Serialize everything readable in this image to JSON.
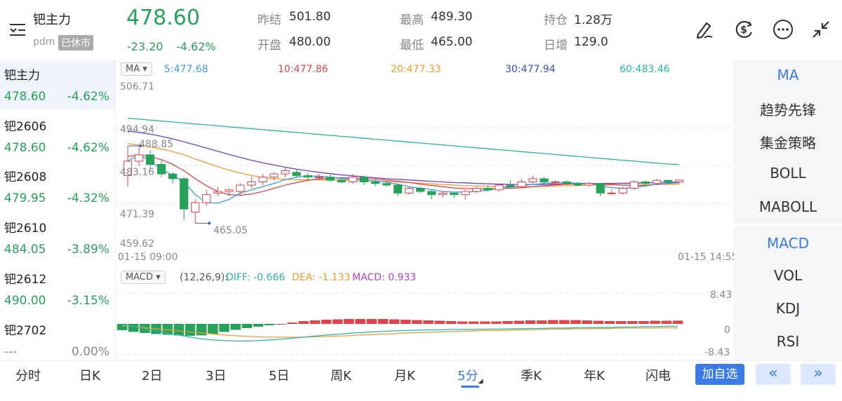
{
  "header": {
    "title": "钯主力",
    "code": "pdm",
    "status": "已休市",
    "price": "478.60",
    "change": "-23.20",
    "change_pct": "-4.62%",
    "stats": [
      {
        "label": "昨结",
        "value": "501.80",
        "color": "#333"
      },
      {
        "label": "开盘",
        "value": "480.00",
        "color": "#27a25a"
      },
      {
        "label": "最高",
        "value": "489.30",
        "color": "#27a25a"
      },
      {
        "label": "最低",
        "value": "465.00",
        "color": "#27a25a"
      },
      {
        "label": "持仓",
        "value": "1.28万",
        "color": "#333"
      },
      {
        "label": "日增",
        "value": "129.0",
        "color": "#333"
      }
    ]
  },
  "toolbar_icons": [
    "draw-icon",
    "currency-icon",
    "more-icon",
    "collapse-icon"
  ],
  "contracts": [
    {
      "name": "钯主力",
      "price": "478.60",
      "pct": "-4.62%"
    },
    {
      "name": "钯2606",
      "price": "478.60",
      "pct": "-4.62%"
    },
    {
      "name": "钯2608",
      "price": "479.95",
      "pct": "-4.32%"
    },
    {
      "name": "钯2610",
      "price": "484.05",
      "pct": "-3.89%"
    },
    {
      "name": "钯2612",
      "price": "490.00",
      "pct": "-3.15%"
    },
    {
      "name": "钯2702",
      "price": "---",
      "pct": "0.00%"
    }
  ],
  "ma_bar": {
    "selector": "MA",
    "ma5": "5:477.68",
    "ma10": "10:477.86",
    "ma20": "20:477.33",
    "ma30": "30:477.94",
    "ma60": "60:483.46"
  },
  "price_axis": [
    "506.71",
    "494.94",
    "483.16",
    "471.39",
    "459.62"
  ],
  "price_labels": {
    "high": "488.85",
    "low": "465.05"
  },
  "time_axis": {
    "start": "01-15 09:00",
    "end": "01-15 14:55"
  },
  "macd_bar": {
    "selector": "MACD",
    "params": "(12,26,9):",
    "diff": "DIFF: -0.666",
    "dea": "DEA: -1.133",
    "macd": "MACD: 0.933"
  },
  "macd_axis": [
    "8.43",
    "0",
    "-8.43"
  ],
  "indicators_top": [
    "MA",
    "趋势先锋",
    "集金策略",
    "BOLL",
    "MABOLL"
  ],
  "indicators_bottom": [
    "MACD",
    "VOL",
    "KDJ",
    "RSI"
  ],
  "tabs": [
    "分时",
    "日K",
    "2日",
    "3日",
    "5日",
    "周K",
    "月K",
    "5分",
    "季K",
    "年K",
    "闪电"
  ],
  "active_tab": "5分",
  "add_button": "加自选",
  "nav": {
    "prev": "«",
    "next": "»"
  },
  "colors": {
    "up": "#e0434a",
    "down": "#27a25a",
    "accent": "#3b7be8",
    "ma5": "#3b9be0",
    "ma10": "#e0434a",
    "ma20": "#f39a2b",
    "ma30": "#7a3fc8",
    "ma60": "#25b5a8"
  },
  "chart_data": {
    "type": "candlestick",
    "y_range": [
      459.62,
      506.71
    ],
    "candles": [
      {
        "o": 480.0,
        "h": 489.3,
        "l": 476.5,
        "c": 484.5
      },
      {
        "o": 484.5,
        "h": 488.85,
        "l": 483.0,
        "c": 486.5
      },
      {
        "o": 486.5,
        "h": 488.0,
        "l": 482.0,
        "c": 483.5
      },
      {
        "o": 483.5,
        "h": 485.0,
        "l": 479.5,
        "c": 480.5
      },
      {
        "o": 480.5,
        "h": 481.0,
        "l": 477.5,
        "c": 479.0
      },
      {
        "o": 479.0,
        "h": 479.5,
        "l": 466.0,
        "c": 469.5
      },
      {
        "o": 468.5,
        "h": 472.5,
        "l": 465.05,
        "c": 471.5
      },
      {
        "o": 471.5,
        "h": 475.5,
        "l": 470.5,
        "c": 474.0
      },
      {
        "o": 474.5,
        "h": 476.5,
        "l": 473.5,
        "c": 475.0
      },
      {
        "o": 475.0,
        "h": 476.0,
        "l": 473.5,
        "c": 475.5
      },
      {
        "o": 475.0,
        "h": 477.5,
        "l": 474.0,
        "c": 477.0
      },
      {
        "o": 477.0,
        "h": 479.5,
        "l": 476.0,
        "c": 478.0
      },
      {
        "o": 478.0,
        "h": 480.5,
        "l": 477.0,
        "c": 479.5
      },
      {
        "o": 479.5,
        "h": 481.0,
        "l": 478.5,
        "c": 480.5
      },
      {
        "o": 480.5,
        "h": 482.5,
        "l": 479.5,
        "c": 481.5
      },
      {
        "o": 481.0,
        "h": 482.0,
        "l": 479.5,
        "c": 480.0
      },
      {
        "o": 480.0,
        "h": 481.0,
        "l": 478.5,
        "c": 479.5
      },
      {
        "o": 479.5,
        "h": 480.5,
        "l": 478.5,
        "c": 479.5
      },
      {
        "o": 479.5,
        "h": 480.5,
        "l": 478.0,
        "c": 478.5
      },
      {
        "o": 478.5,
        "h": 479.5,
        "l": 477.5,
        "c": 478.0
      },
      {
        "o": 478.0,
        "h": 480.5,
        "l": 477.5,
        "c": 479.5
      },
      {
        "o": 479.5,
        "h": 480.0,
        "l": 477.0,
        "c": 478.0
      },
      {
        "o": 478.0,
        "h": 479.0,
        "l": 476.5,
        "c": 477.5
      },
      {
        "o": 477.5,
        "h": 478.0,
        "l": 476.5,
        "c": 477.0
      },
      {
        "o": 477.0,
        "h": 477.5,
        "l": 473.5,
        "c": 474.5
      },
      {
        "o": 474.5,
        "h": 476.5,
        "l": 474.0,
        "c": 476.0
      },
      {
        "o": 476.0,
        "h": 476.5,
        "l": 474.5,
        "c": 475.0
      },
      {
        "o": 475.0,
        "h": 475.5,
        "l": 472.5,
        "c": 474.0
      },
      {
        "o": 474.0,
        "h": 475.0,
        "l": 473.0,
        "c": 474.5
      },
      {
        "o": 474.5,
        "h": 475.0,
        "l": 473.0,
        "c": 474.0
      },
      {
        "o": 474.0,
        "h": 475.5,
        "l": 472.5,
        "c": 475.0
      },
      {
        "o": 475.0,
        "h": 476.5,
        "l": 474.5,
        "c": 476.0
      },
      {
        "o": 476.0,
        "h": 477.0,
        "l": 475.0,
        "c": 475.5
      },
      {
        "o": 475.5,
        "h": 477.5,
        "l": 475.0,
        "c": 477.0
      },
      {
        "o": 477.0,
        "h": 478.5,
        "l": 476.0,
        "c": 476.5
      },
      {
        "o": 476.5,
        "h": 479.0,
        "l": 476.0,
        "c": 478.0
      },
      {
        "o": 478.0,
        "h": 480.0,
        "l": 477.5,
        "c": 479.0
      },
      {
        "o": 479.0,
        "h": 479.5,
        "l": 477.5,
        "c": 478.0
      },
      {
        "o": 478.0,
        "h": 478.5,
        "l": 477.0,
        "c": 478.0
      },
      {
        "o": 478.0,
        "h": 478.5,
        "l": 477.0,
        "c": 477.5
      },
      {
        "o": 477.5,
        "h": 478.0,
        "l": 476.5,
        "c": 477.0
      },
      {
        "o": 477.0,
        "h": 478.0,
        "l": 476.5,
        "c": 477.5
      },
      {
        "o": 477.5,
        "h": 477.5,
        "l": 473.5,
        "c": 474.5
      },
      {
        "o": 474.5,
        "h": 475.5,
        "l": 474.0,
        "c": 474.5
      },
      {
        "o": 474.5,
        "h": 476.5,
        "l": 474.0,
        "c": 476.0
      },
      {
        "o": 476.0,
        "h": 478.5,
        "l": 475.5,
        "c": 478.0
      },
      {
        "o": 478.0,
        "h": 478.5,
        "l": 476.5,
        "c": 477.5
      },
      {
        "o": 477.5,
        "h": 479.0,
        "l": 477.0,
        "c": 478.5
      },
      {
        "o": 478.5,
        "h": 478.6,
        "l": 477.5,
        "c": 478.0
      },
      {
        "o": 478.0,
        "h": 478.6,
        "l": 477.5,
        "c": 478.6
      }
    ],
    "ma": {
      "ma5": [
        484.5,
        486.5,
        484.5,
        482.0,
        480.0,
        478.0,
        474.0,
        471.5,
        471.3,
        472.5,
        474.5,
        475.5,
        476.5,
        477.5,
        478.7,
        479.5,
        479.8,
        479.8,
        479.5,
        479.0,
        478.8,
        478.6,
        478.3,
        478.0,
        477.3,
        476.5,
        476.0,
        475.6,
        475.0,
        474.8,
        474.8,
        475.0,
        475.4,
        475.9,
        476.3,
        476.8,
        477.2,
        477.5,
        477.7,
        477.7,
        477.6,
        477.5,
        476.8,
        476.2,
        476.0,
        476.3,
        476.7,
        477.3,
        477.6,
        477.7
      ],
      "ma10": [
        486.0,
        486.5,
        486.0,
        485.0,
        483.5,
        481.5,
        479.0,
        476.8,
        475.0,
        474.0,
        473.8,
        474.2,
        475.0,
        476.0,
        477.0,
        477.8,
        478.5,
        478.9,
        479.2,
        479.3,
        479.2,
        479.1,
        478.9,
        478.6,
        478.2,
        477.8,
        477.3,
        476.9,
        476.5,
        476.1,
        475.9,
        475.8,
        475.8,
        475.9,
        476.0,
        476.2,
        476.5,
        476.8,
        477.1,
        477.3,
        477.4,
        477.5,
        477.4,
        477.2,
        477.0,
        476.9,
        476.9,
        477.2,
        477.5,
        477.9
      ],
      "ma20": [
        490.0,
        489.5,
        489.0,
        488.3,
        487.5,
        486.5,
        485.2,
        484.0,
        482.8,
        481.7,
        480.8,
        480.0,
        479.4,
        479.0,
        478.8,
        478.7,
        478.7,
        478.7,
        478.7,
        478.6,
        478.5,
        478.4,
        478.3,
        478.2,
        478.0,
        477.8,
        477.6,
        477.4,
        477.2,
        477.0,
        476.8,
        476.7,
        476.6,
        476.5,
        476.5,
        476.5,
        476.5,
        476.6,
        476.7,
        476.8,
        476.9,
        477.0,
        477.0,
        477.0,
        477.0,
        477.0,
        477.1,
        477.2,
        477.3,
        477.3
      ],
      "ma30": [
        494.0,
        493.5,
        493.0,
        492.3,
        491.5,
        490.6,
        489.6,
        488.6,
        487.6,
        486.6,
        485.7,
        484.8,
        484.0,
        483.3,
        482.6,
        482.0,
        481.5,
        481.0,
        480.6,
        480.2,
        479.9,
        479.6,
        479.3,
        479.0,
        478.8,
        478.6,
        478.4,
        478.2,
        478.0,
        477.8,
        477.7,
        477.5,
        477.4,
        477.3,
        477.2,
        477.2,
        477.2,
        477.2,
        477.3,
        477.3,
        477.4,
        477.4,
        477.5,
        477.5,
        477.6,
        477.6,
        477.7,
        477.8,
        477.9,
        477.9
      ],
      "ma60": [
        498.0,
        497.7,
        497.4,
        497.1,
        496.8,
        496.5,
        496.2,
        495.9,
        495.6,
        495.3,
        495.0,
        494.7,
        494.4,
        494.1,
        493.8,
        493.5,
        493.2,
        492.9,
        492.6,
        492.3,
        492.0,
        491.7,
        491.4,
        491.1,
        490.8,
        490.5,
        490.2,
        489.9,
        489.6,
        489.3,
        489.0,
        488.7,
        488.4,
        488.1,
        487.8,
        487.5,
        487.2,
        486.9,
        486.6,
        486.3,
        486.0,
        485.7,
        485.4,
        485.1,
        484.8,
        484.5,
        484.2,
        483.9,
        483.6,
        483.46
      ]
    },
    "macd": {
      "hist": [
        -1.8,
        -2.3,
        -2.6,
        -2.9,
        -3.1,
        -3.3,
        -3.4,
        -3.3,
        -2.9,
        -2.3,
        -1.7,
        -1.2,
        -0.8,
        -0.4,
        0.0,
        0.4,
        0.8,
        1.0,
        1.2,
        1.3,
        1.4,
        1.4,
        1.4,
        1.4,
        1.3,
        1.2,
        1.1,
        1.0,
        0.9,
        0.8,
        0.7,
        0.7,
        0.7,
        0.7,
        0.8,
        0.9,
        1.0,
        1.0,
        1.1,
        1.1,
        1.1,
        1.0,
        0.9,
        0.8,
        0.8,
        0.8,
        0.8,
        0.9,
        0.9,
        0.93
      ],
      "diff": [
        -0.2,
        -0.8,
        -1.4,
        -2.0,
        -2.6,
        -3.2,
        -3.8,
        -4.3,
        -4.6,
        -4.8,
        -4.9,
        -4.9,
        -4.8,
        -4.6,
        -4.4,
        -4.1,
        -3.8,
        -3.5,
        -3.2,
        -3.0,
        -2.7,
        -2.5,
        -2.3,
        -2.1,
        -2.0,
        -1.9,
        -1.8,
        -1.7,
        -1.7,
        -1.6,
        -1.6,
        -1.6,
        -1.5,
        -1.5,
        -1.4,
        -1.4,
        -1.3,
        -1.3,
        -1.2,
        -1.2,
        -1.1,
        -1.1,
        -1.0,
        -1.0,
        -0.9,
        -0.9,
        -0.8,
        -0.8,
        -0.7,
        -0.666
      ],
      "dea": [
        -0.5,
        -0.8,
        -1.1,
        -1.4,
        -1.7,
        -2.0,
        -2.3,
        -2.6,
        -2.9,
        -3.2,
        -3.4,
        -3.6,
        -3.7,
        -3.8,
        -3.8,
        -3.8,
        -3.8,
        -3.7,
        -3.6,
        -3.5,
        -3.4,
        -3.2,
        -3.1,
        -2.9,
        -2.8,
        -2.6,
        -2.5,
        -2.4,
        -2.3,
        -2.2,
        -2.1,
        -2.0,
        -1.9,
        -1.9,
        -1.8,
        -1.7,
        -1.7,
        -1.6,
        -1.5,
        -1.5,
        -1.4,
        -1.4,
        -1.3,
        -1.3,
        -1.2,
        -1.2,
        -1.2,
        -1.2,
        -1.15,
        -1.133
      ],
      "y_range": [
        -8.43,
        8.43
      ]
    }
  }
}
